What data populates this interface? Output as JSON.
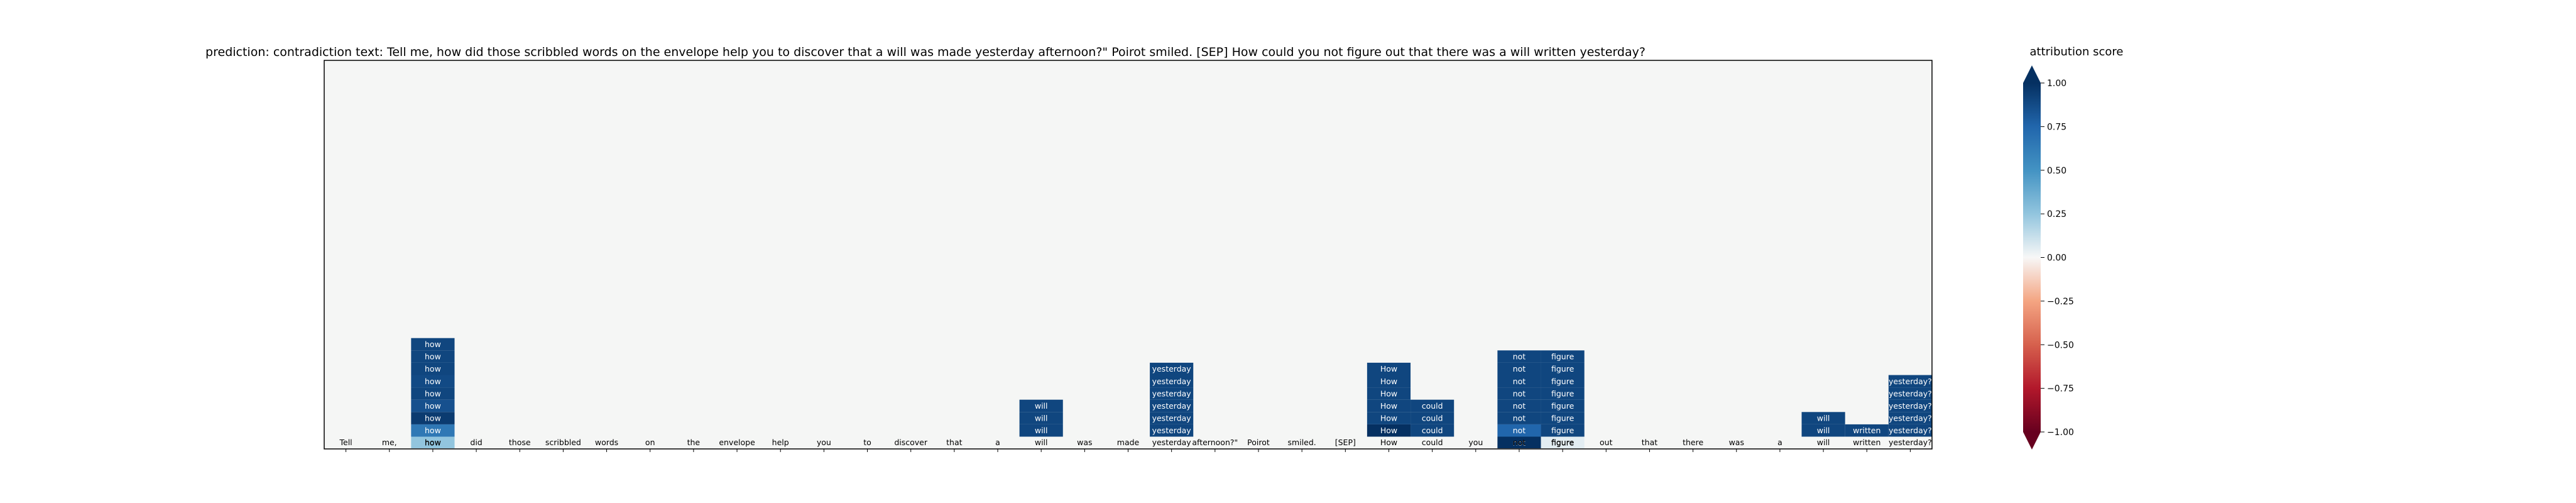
{
  "chart_data": {
    "type": "heatmap",
    "title": "prediction:  contradiction     text:  Tell me, how did those scribbled words on the envelope help you to discover that a will was made yesterday afternoon?\" Poirot smiled. [SEP] How could you not figure out that there was a will written yesterday?",
    "tokens": [
      "Tell",
      "me,",
      "how",
      "did",
      "those",
      "scribbled",
      "words",
      "on",
      "the",
      "envelope",
      "help",
      "you",
      "to",
      "discover",
      "that",
      "a",
      "will",
      "was",
      "made",
      "yesterday",
      "afternoon?\"",
      "Poirot",
      "smiled.",
      "[SEP]",
      "How",
      "could",
      "you",
      "not",
      "figure",
      "out",
      "that",
      "there",
      "was",
      "a",
      "will",
      "written",
      "yesterday?"
    ],
    "base_scores": [
      0,
      0,
      0.25,
      0,
      0,
      0,
      0,
      0,
      0,
      0,
      0,
      0,
      0,
      0,
      0,
      0,
      0,
      0,
      0,
      0,
      0,
      0,
      0,
      0,
      0,
      0,
      0,
      1.0,
      0.05,
      0,
      0,
      0,
      0,
      0,
      0,
      0,
      0
    ],
    "highlights": [
      {
        "token": "how",
        "values": [
          0.65,
          0.95,
          0.85,
          0.9,
          0.88,
          0.9,
          0.9,
          0.9
        ]
      },
      {
        "token": "will",
        "values": [
          0.9,
          0.9,
          0.9
        ]
      },
      {
        "token": "yesterday",
        "values": [
          0.9,
          0.9,
          0.9,
          0.9,
          0.9,
          0.9
        ]
      },
      {
        "token": "How",
        "values": [
          1.0,
          0.9,
          0.9,
          0.9,
          0.9,
          0.9
        ]
      },
      {
        "token": "could",
        "values": [
          0.9,
          0.9,
          0.9
        ]
      },
      {
        "token": "not",
        "values": [
          0.75,
          0.9,
          0.9,
          0.9,
          0.9,
          0.9,
          0.9
        ]
      },
      {
        "token": "figure",
        "values": [
          0.9,
          0.9,
          0.9,
          0.9,
          0.9,
          0.9,
          0.9
        ]
      },
      {
        "token": "will",
        "values": [
          0.9,
          0.9
        ]
      },
      {
        "token": "written",
        "values": [
          0.9
        ]
      },
      {
        "token": "yesterday?",
        "values": [
          0.9,
          0.9,
          0.9,
          0.9,
          0.9
        ]
      }
    ],
    "highlight_columns": [
      2,
      16,
      19,
      24,
      25,
      27,
      28,
      34,
      35,
      36
    ],
    "colorbar": {
      "label": "attribution score",
      "range": [
        -1.0,
        1.0
      ],
      "ticks": [
        -1.0,
        -0.75,
        -0.5,
        -0.25,
        0.0,
        0.25,
        0.5,
        0.75,
        1.0
      ],
      "tick_labels": [
        "−1.00",
        "−0.75",
        "−0.50",
        "−0.25",
        "0.00",
        "0.25",
        "0.50",
        "0.75",
        "1.00"
      ],
      "colormap": "RdBu"
    },
    "grid": false
  }
}
